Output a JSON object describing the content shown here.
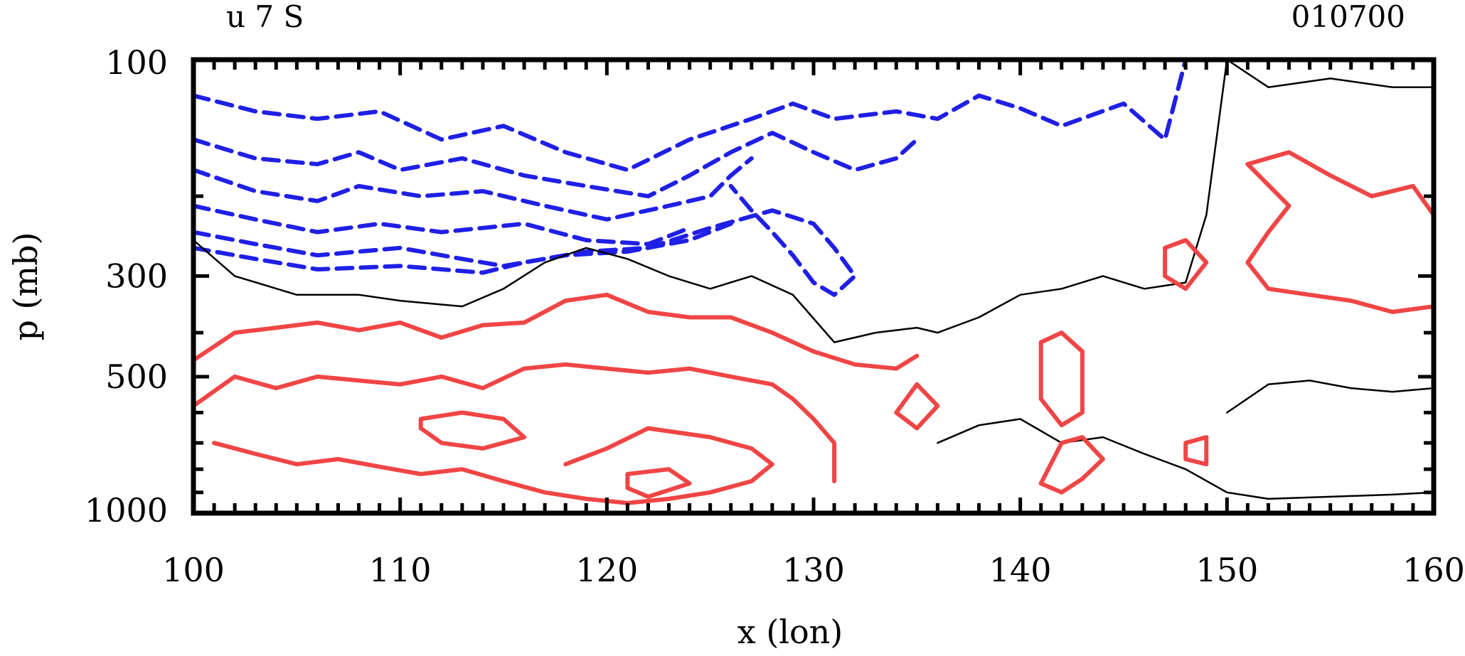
{
  "header": {
    "left_label": "u 7 S",
    "right_label": "010700"
  },
  "chart_data": {
    "type": "contour",
    "title": "u 7 S",
    "date_label": "010700",
    "xlabel": "x (lon)",
    "ylabel": "p (mb)",
    "xlim": [
      100,
      160
    ],
    "x_ticks": [
      100,
      110,
      120,
      130,
      140,
      150,
      160
    ],
    "x_tick_labels": [
      "100",
      "110",
      "120",
      "130",
      "140",
      "150",
      "160"
    ],
    "ylim": [
      1000,
      100
    ],
    "y_scale": "log",
    "y_ticks": [
      100,
      300,
      500,
      1000
    ],
    "y_tick_labels": [
      "100",
      "300",
      "500",
      "1000"
    ],
    "grid": false,
    "colors": {
      "negative": "#1f1fe6",
      "zero": "#000000",
      "positive": "#f04545"
    },
    "contours": [
      {
        "group": "negative",
        "style": "dashed",
        "lines": [
          [
            [
              100,
              120
            ],
            [
              103,
              130
            ],
            [
              106,
              135
            ],
            [
              109,
              130
            ],
            [
              112,
              150
            ],
            [
              115,
              140
            ],
            [
              118,
              160
            ],
            [
              121,
              175
            ],
            [
              124,
              150
            ],
            [
              127,
              135
            ],
            [
              129,
              125
            ],
            [
              131,
              135
            ],
            [
              134,
              130
            ],
            [
              136,
              135
            ],
            [
              138,
              120
            ],
            [
              140,
              128
            ],
            [
              142,
              140
            ],
            [
              145,
              125
            ],
            [
              147,
              150
            ],
            [
              148,
              100
            ]
          ],
          [
            [
              100,
              150
            ],
            [
              103,
              165
            ],
            [
              106,
              170
            ],
            [
              108,
              160
            ],
            [
              110,
              175
            ],
            [
              113,
              165
            ],
            [
              116,
              180
            ],
            [
              119,
              190
            ],
            [
              122,
              200
            ],
            [
              124,
              180
            ],
            [
              126,
              160
            ],
            [
              128,
              145
            ],
            [
              130,
              160
            ],
            [
              132,
              175
            ],
            [
              134,
              165
            ],
            [
              135,
              150
            ]
          ],
          [
            [
              100,
              175
            ],
            [
              103,
              195
            ],
            [
              106,
              205
            ],
            [
              108,
              190
            ],
            [
              111,
              200
            ],
            [
              114,
              195
            ],
            [
              117,
              210
            ],
            [
              120,
              225
            ],
            [
              123,
              210
            ],
            [
              125,
              200
            ],
            [
              126,
              180
            ],
            [
              127,
              165
            ]
          ],
          [
            [
              100,
              210
            ],
            [
              103,
              225
            ],
            [
              106,
              240
            ],
            [
              109,
              230
            ],
            [
              112,
              240
            ],
            [
              116,
              230
            ],
            [
              119,
              250
            ],
            [
              122,
              255
            ],
            [
              124,
              235
            ]
          ],
          [
            [
              100,
              240
            ],
            [
              103,
              255
            ],
            [
              106,
              270
            ],
            [
              110,
              260
            ],
            [
              113,
              275
            ],
            [
              115,
              285
            ],
            [
              118,
              270
            ],
            [
              121,
              265
            ],
            [
              124,
              250
            ],
            [
              126,
              230
            ]
          ],
          [
            [
              100,
              260
            ],
            [
              103,
              275
            ],
            [
              106,
              290
            ],
            [
              110,
              285
            ],
            [
              114,
              295
            ],
            [
              116,
              280
            ],
            [
              119,
              265
            ],
            [
              122,
              260
            ],
            [
              125,
              235
            ],
            [
              128,
              215
            ],
            [
              130,
              230
            ],
            [
              131,
              260
            ],
            [
              132,
              300
            ],
            [
              131,
              330
            ],
            [
              130,
              310
            ],
            [
              129,
              270
            ],
            [
              128,
              240
            ],
            [
              127,
              215
            ],
            [
              126,
              190
            ]
          ]
        ]
      },
      {
        "group": "zero",
        "style": "solid",
        "lines": [
          [
            [
              100,
              250
            ],
            [
              102,
              300
            ],
            [
              105,
              330
            ],
            [
              108,
              330
            ],
            [
              110,
              340
            ],
            [
              113,
              350
            ],
            [
              115,
              320
            ],
            [
              117,
              280
            ],
            [
              119,
              260
            ],
            [
              121,
              275
            ],
            [
              123,
              300
            ],
            [
              125,
              320
            ],
            [
              127,
              300
            ],
            [
              129,
              330
            ],
            [
              131,
              420
            ],
            [
              133,
              400
            ],
            [
              135,
              390
            ],
            [
              136,
              400
            ],
            [
              138,
              370
            ],
            [
              140,
              330
            ],
            [
              142,
              320
            ],
            [
              144,
              300
            ],
            [
              146,
              320
            ],
            [
              148,
              310
            ],
            [
              149,
              220
            ],
            [
              150,
              100
            ],
            [
              152,
              115
            ],
            [
              155,
              110
            ],
            [
              158,
              115
            ],
            [
              160,
              115
            ]
          ],
          [
            [
              136,
              700
            ],
            [
              138,
              640
            ],
            [
              140,
              620
            ],
            [
              142,
              700
            ],
            [
              144,
              680
            ],
            [
              146,
              740
            ],
            [
              148,
              800
            ],
            [
              150,
              900
            ],
            [
              152,
              930
            ],
            [
              155,
              920
            ],
            [
              158,
              910
            ],
            [
              160,
              900
            ]
          ],
          [
            [
              150,
              600
            ],
            [
              152,
              520
            ],
            [
              154,
              510
            ],
            [
              156,
              530
            ],
            [
              158,
              540
            ],
            [
              160,
              530
            ]
          ]
        ]
      },
      {
        "group": "positive",
        "style": "solid",
        "lines": [
          [
            [
              100,
              460
            ],
            [
              102,
              400
            ],
            [
              104,
              390
            ],
            [
              106,
              380
            ],
            [
              108,
              395
            ],
            [
              110,
              380
            ],
            [
              112,
              410
            ],
            [
              114,
              385
            ],
            [
              116,
              380
            ],
            [
              118,
              340
            ],
            [
              120,
              330
            ],
            [
              122,
              360
            ],
            [
              124,
              370
            ],
            [
              126,
              370
            ],
            [
              128,
              400
            ],
            [
              130,
              440
            ],
            [
              132,
              470
            ],
            [
              134,
              480
            ],
            [
              135,
              450
            ]
          ],
          [
            [
              100,
              580
            ],
            [
              102,
              500
            ],
            [
              104,
              530
            ],
            [
              106,
              500
            ],
            [
              108,
              510
            ],
            [
              110,
              520
            ],
            [
              112,
              500
            ],
            [
              114,
              530
            ],
            [
              116,
              480
            ],
            [
              118,
              470
            ],
            [
              120,
              480
            ],
            [
              122,
              490
            ],
            [
              124,
              480
            ],
            [
              126,
              500
            ],
            [
              128,
              520
            ],
            [
              129,
              560
            ],
            [
              130,
              620
            ],
            [
              131,
              700
            ],
            [
              131,
              850
            ]
          ],
          [
            [
              101,
              700
            ],
            [
              103,
              740
            ],
            [
              105,
              780
            ],
            [
              107,
              760
            ],
            [
              109,
              790
            ],
            [
              111,
              820
            ],
            [
              113,
              800
            ],
            [
              115,
              850
            ],
            [
              117,
              900
            ],
            [
              119,
              930
            ],
            [
              121,
              950
            ],
            [
              123,
              930
            ],
            [
              125,
              900
            ],
            [
              127,
              850
            ],
            [
              128,
              780
            ],
            [
              127,
              720
            ],
            [
              125,
              680
            ],
            [
              122,
              650
            ],
            [
              120,
              720
            ],
            [
              118,
              780
            ]
          ],
          [
            [
              111,
              620
            ],
            [
              113,
              600
            ],
            [
              115,
              620
            ],
            [
              116,
              680
            ],
            [
              114,
              720
            ],
            [
              112,
              700
            ],
            [
              111,
              650
            ],
            [
              111,
              620
            ]
          ],
          [
            [
              121,
              820
            ],
            [
              123,
              800
            ],
            [
              124,
              860
            ],
            [
              122,
              920
            ],
            [
              121,
              880
            ],
            [
              121,
              820
            ]
          ],
          [
            [
              151,
              170
            ],
            [
              153,
              160
            ],
            [
              155,
              180
            ],
            [
              157,
              200
            ],
            [
              159,
              190
            ],
            [
              160,
              220
            ],
            [
              160,
              350
            ],
            [
              158,
              360
            ],
            [
              156,
              340
            ],
            [
              154,
              330
            ],
            [
              152,
              320
            ],
            [
              151,
              280
            ],
            [
              152,
              240
            ],
            [
              153,
              210
            ],
            [
              151,
              170
            ]
          ],
          [
            [
              147,
              260
            ],
            [
              148,
              250
            ],
            [
              149,
              280
            ],
            [
              148,
              320
            ],
            [
              147,
              300
            ],
            [
              147,
              260
            ]
          ],
          [
            [
              141,
              420
            ],
            [
              142,
              400
            ],
            [
              143,
              440
            ],
            [
              143,
              600
            ],
            [
              142,
              640
            ],
            [
              141,
              560
            ],
            [
              141,
              420
            ]
          ],
          [
            [
              134,
              600
            ],
            [
              135,
              520
            ],
            [
              136,
              580
            ],
            [
              135,
              650
            ],
            [
              134,
              600
            ]
          ],
          [
            [
              142,
              700
            ],
            [
              143,
              680
            ],
            [
              144,
              760
            ],
            [
              143,
              840
            ],
            [
              142,
              900
            ],
            [
              141,
              860
            ],
            [
              142,
              700
            ]
          ],
          [
            [
              148,
              700
            ],
            [
              149,
              680
            ],
            [
              149,
              780
            ],
            [
              148,
              760
            ],
            [
              148,
              700
            ]
          ]
        ]
      }
    ]
  }
}
